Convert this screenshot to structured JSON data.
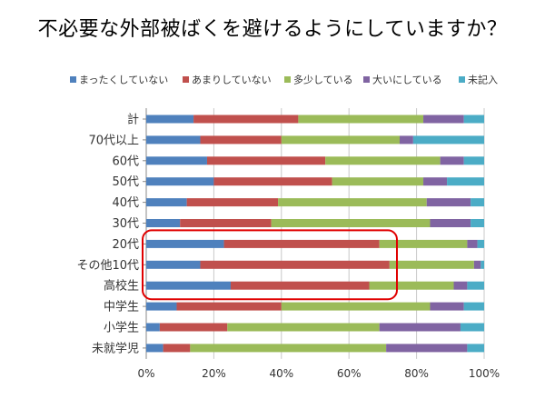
{
  "chart_data": {
    "type": "bar",
    "orientation": "horizontal",
    "stacked": true,
    "percent": true,
    "title": "不必要な外部被ばくを避けるようにしていますか？",
    "categories": [
      "計",
      "70代以上",
      "60代",
      "50代",
      "40代",
      "30代",
      "20代",
      "その他10代",
      "高校生",
      "中学生",
      "小学生",
      "未就学児"
    ],
    "series": [
      {
        "name": "まったくしていない",
        "color": "#4f81bd",
        "values": [
          14,
          16,
          18,
          20,
          12,
          10,
          23,
          16,
          25,
          9,
          4,
          5
        ]
      },
      {
        "name": "あまりしていない",
        "color": "#c0504d",
        "values": [
          31,
          24,
          35,
          35,
          27,
          27,
          46,
          56,
          41,
          31,
          20,
          8
        ]
      },
      {
        "name": "多少している",
        "color": "#9bbb59",
        "values": [
          37,
          35,
          34,
          27,
          44,
          47,
          26,
          25,
          25,
          44,
          45,
          58
        ]
      },
      {
        "name": "大いにしている",
        "color": "#8064a2",
        "values": [
          12,
          4,
          7,
          7,
          13,
          12,
          3,
          2,
          4,
          10,
          24,
          24
        ]
      },
      {
        "name": "未記入",
        "color": "#4bacc6",
        "values": [
          6,
          21,
          6,
          11,
          4,
          4,
          2,
          1,
          5,
          6,
          7,
          5
        ]
      }
    ],
    "xlim": [
      0,
      100
    ],
    "xticks": [
      "0%",
      "20%",
      "40%",
      "60%",
      "80%",
      "100%"
    ],
    "highlight": {
      "categories": [
        "20代",
        "その他10代",
        "高校生"
      ],
      "color": "#e00000"
    },
    "legend_position": "top"
  }
}
